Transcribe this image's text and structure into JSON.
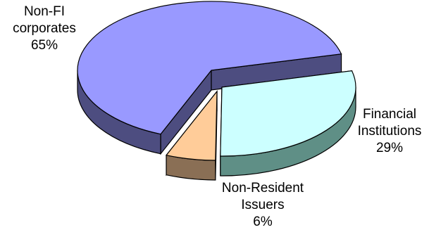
{
  "chart_data": {
    "type": "pie",
    "title": "",
    "style": "3d-exploded",
    "slices": [
      {
        "label": "Non-FI corporates",
        "label_lines": [
          "Non-FI",
          "corporates"
        ],
        "value": 65,
        "value_label": "65%",
        "top_color": "#9999ff",
        "side_color": "#4d4d80"
      },
      {
        "label": "Financial Institutions",
        "label_lines": [
          "Financial",
          "Institutions"
        ],
        "value": 29,
        "value_label": "29%",
        "top_color": "#ccffff",
        "side_color": "#5f8f86"
      },
      {
        "label": "Non-Resident Issuers",
        "label_lines": [
          "Non-Resident",
          "Issuers"
        ],
        "value": 6,
        "value_label": "6%",
        "top_color": "#ffcc99",
        "side_color": "#8a6f55"
      }
    ]
  }
}
